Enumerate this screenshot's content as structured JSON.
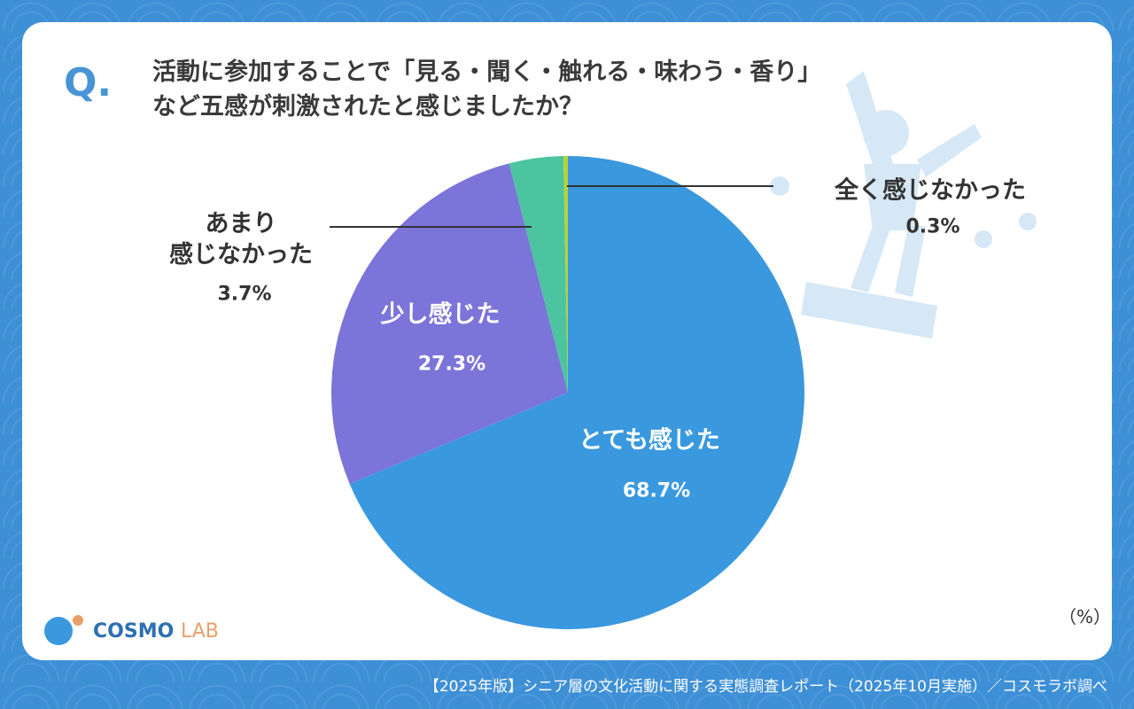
{
  "q_mark": "Q.",
  "chart_data": {
    "type": "pie",
    "title": "活動に参加することで「見る・聞く・触れる・味わう・香り」\nなど五感が刺激されたと感じましたか？",
    "categories": [
      "とても感じた",
      "少し感じた",
      "あまり\n感じなかった",
      "全く感じなかった"
    ],
    "values": [
      68.7,
      27.3,
      3.7,
      0.3
    ],
    "value_labels": [
      "68.7%",
      "27.3%",
      "3.7%",
      "0.3%"
    ],
    "colors": [
      "#3a98de",
      "#7b74d9",
      "#4cc4a0",
      "#b5d334"
    ],
    "unit_note": "（%）"
  },
  "logo": {
    "main": "COSMO",
    "sub": "LAB"
  },
  "footer": "【2025年版】シニア層の文化活動に関する実態調査レポート（2025年10月実施）／コスモラボ調べ"
}
